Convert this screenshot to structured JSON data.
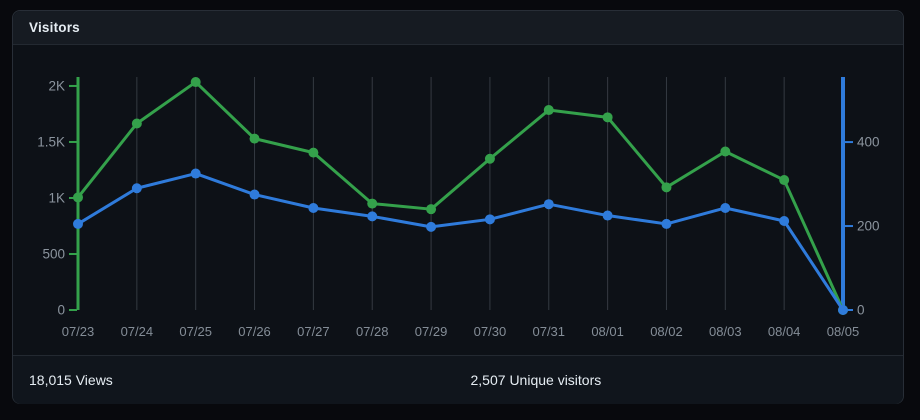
{
  "card": {
    "title": "Visitors"
  },
  "footer": {
    "stats": [
      {
        "value": "18,015",
        "label": "Views"
      },
      {
        "value": "2,507",
        "label": "Unique visitors"
      }
    ]
  },
  "colors": {
    "views_green": "#34a14b",
    "unique_blue": "#2f7bdb",
    "gridline": "#343a42",
    "axis_label": "#8b949e"
  },
  "chart_data": {
    "type": "line",
    "title": "Visitors",
    "x": [
      "07/23",
      "07/24",
      "07/25",
      "07/26",
      "07/27",
      "07/28",
      "07/29",
      "07/30",
      "07/31",
      "08/01",
      "08/02",
      "08/03",
      "08/04",
      "08/05"
    ],
    "series": [
      {
        "name": "Views",
        "axis": "left",
        "color": "#34a14b",
        "values": [
          1005,
          1665,
          2035,
          1530,
          1405,
          950,
          900,
          1350,
          1785,
          1720,
          1095,
          1415,
          1160,
          0
        ]
      },
      {
        "name": "Unique visitors",
        "axis": "right",
        "color": "#2f7bdb",
        "values": [
          205,
          290,
          325,
          275,
          243,
          223,
          198,
          216,
          252,
          225,
          205,
          243,
          212,
          0
        ]
      }
    ],
    "left_axis": {
      "ticks": [
        0,
        500,
        1000,
        1500,
        2000
      ],
      "tick_labels": [
        "0",
        "500",
        "1K",
        "1.5K",
        "2K"
      ],
      "range": [
        0,
        2080
      ]
    },
    "right_axis": {
      "ticks": [
        0,
        200,
        400
      ],
      "tick_labels": [
        "0",
        "200",
        "400"
      ],
      "range": [
        0,
        555
      ]
    },
    "grid": "vertical-only",
    "legend": "none",
    "markers": "circle"
  }
}
